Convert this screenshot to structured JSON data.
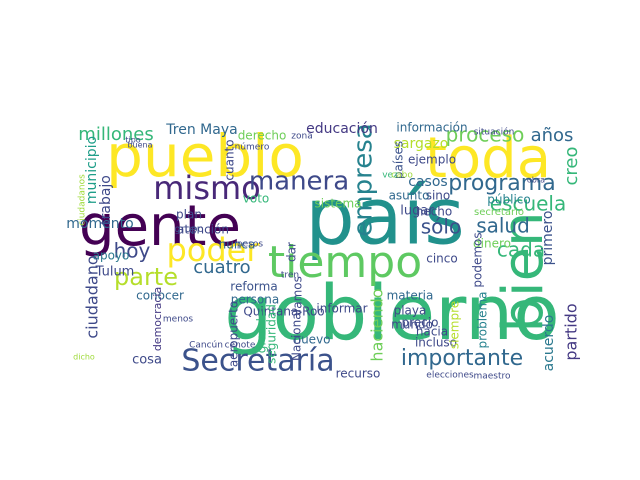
{
  "word_cloud": {
    "words": [
      {
        "text": "gobierno",
        "color": "#35b779"
      },
      {
        "text": "país",
        "color": "#21918c"
      },
      {
        "text": "gente",
        "color": "#440154"
      },
      {
        "text": "toda",
        "color": "#fde725"
      },
      {
        "text": "pueblo",
        "color": "#fde725"
      },
      {
        "text": "bien",
        "color": "#35b779"
      },
      {
        "text": "tiempo",
        "color": "#5ec962"
      },
      {
        "text": "Secretaría",
        "color": "#3b528b"
      },
      {
        "text": "importante",
        "color": "#31688e"
      },
      {
        "text": "poder",
        "color": "#fde725"
      },
      {
        "text": "mismo",
        "color": "#482878"
      },
      {
        "text": "manera",
        "color": "#3e4989"
      },
      {
        "text": "empresa",
        "color": "#26828e"
      },
      {
        "text": "programa",
        "color": "#31688e"
      },
      {
        "text": "parte",
        "color": "#b5de2b"
      },
      {
        "text": "proceso",
        "color": "#6ece58"
      },
      {
        "text": "escuela",
        "color": "#35b779"
      },
      {
        "text": "salud",
        "color": "#31688e"
      },
      {
        "text": "cada",
        "color": "#35b779"
      },
      {
        "text": "hoy",
        "color": "#3e4989"
      },
      {
        "text": "cuatro",
        "color": "#31688e"
      },
      {
        "text": "millones",
        "color": "#35b779"
      },
      {
        "text": "educación",
        "color": "#443983"
      },
      {
        "text": "Tren Maya",
        "color": "#31688e"
      },
      {
        "text": "años",
        "color": "#31688e"
      },
      {
        "text": "creo",
        "color": "#35b779"
      },
      {
        "text": "sólo",
        "color": "#3b528b"
      },
      {
        "text": "partido",
        "color": "#443983"
      },
      {
        "text": "acuerdo",
        "color": "#2a788e"
      },
      {
        "text": "ciudadano",
        "color": "#3e4989"
      },
      {
        "text": "haciendo",
        "color": "#6ece58"
      },
      {
        "text": "momento",
        "color": "#31688e"
      },
      {
        "text": "trabajo",
        "color": "#3e4989"
      },
      {
        "text": "apoyo",
        "color": "#2a788e"
      },
      {
        "text": "Tulum",
        "color": "#3e4989"
      },
      {
        "text": "municipio",
        "color": "#1f9e89"
      },
      {
        "text": "información",
        "color": "#31688e"
      },
      {
        "text": "sargazo",
        "color": "#b5de2b"
      },
      {
        "text": "ejemplo",
        "color": "#3e4989"
      },
      {
        "text": "casos",
        "color": "#31688e"
      },
      {
        "text": "lugar",
        "color": "#3e4989"
      },
      {
        "text": "sino",
        "color": "#3e4989"
      },
      {
        "text": "dinero",
        "color": "#6ece58"
      },
      {
        "text": "primero",
        "color": "#3b528b"
      },
      {
        "text": "podemos",
        "color": "#3e4989"
      },
      {
        "text": "cinco",
        "color": "#3e4989"
      },
      {
        "text": "público",
        "color": "#26828e"
      },
      {
        "text": "secretario",
        "color": "#6ece58"
      },
      {
        "text": "países",
        "color": "#3b528b"
      },
      {
        "text": "hecho",
        "color": "#3e4989"
      },
      {
        "text": "asunto",
        "color": "#31688e"
      },
      {
        "text": "plan",
        "color": "#3e4989"
      },
      {
        "text": "atención",
        "color": "#3e4989"
      },
      {
        "text": "nunca",
        "color": "#31688e"
      },
      {
        "text": "voto",
        "color": "#35b779"
      },
      {
        "text": "cuanto",
        "color": "#3e4989"
      },
      {
        "text": "derecho",
        "color": "#6ece58"
      },
      {
        "text": "grupo",
        "color": "#3e4989"
      },
      {
        "text": "reforma",
        "color": "#3b528b"
      },
      {
        "text": "persona",
        "color": "#31688e"
      },
      {
        "text": "Quintana Roo",
        "color": "#3e4989"
      },
      {
        "text": "conocer",
        "color": "#31688e"
      },
      {
        "text": "informar",
        "color": "#3e4989"
      },
      {
        "text": "materia",
        "color": "#31688e"
      },
      {
        "text": "precio",
        "color": "#3e4989"
      },
      {
        "text": "mundo",
        "color": "#3e4989"
      },
      {
        "text": "playa",
        "color": "#3e4989"
      },
      {
        "text": "hacia",
        "color": "#3e4989"
      },
      {
        "text": "incluso",
        "color": "#3e4989"
      },
      {
        "text": "siempre",
        "color": "#b5de2b"
      },
      {
        "text": "problema",
        "color": "#26828e"
      },
      {
        "text": "nuevo",
        "color": "#31688e"
      },
      {
        "text": "recurso",
        "color": "#3e4989"
      },
      {
        "text": "cosa",
        "color": "#3e4989"
      },
      {
        "text": "democracia",
        "color": "#443983"
      },
      {
        "text": "aeropuerto",
        "color": "#3e4989"
      },
      {
        "text": "grande",
        "color": "#35b779"
      },
      {
        "text": "seguridad",
        "color": "#35b779"
      },
      {
        "text": "Nacional",
        "color": "#3e4989"
      },
      {
        "text": "vamos",
        "color": "#3e4989"
      },
      {
        "text": "dar",
        "color": "#3e4989"
      },
      {
        "text": "sistema",
        "color": "#6ece58"
      },
      {
        "text": "elecciones",
        "color": "#3e4989"
      },
      {
        "text": "maestro",
        "color": "#3e4989"
      },
      {
        "text": "menos",
        "color": "#3e4989"
      },
      {
        "text": "pesos",
        "color": "#3e4989"
      },
      {
        "text": "tren",
        "color": "#3e4989"
      },
      {
        "text": "cenote",
        "color": "#3e4989"
      },
      {
        "text": "Cancún",
        "color": "#3e4989"
      },
      {
        "text": "ciudadanos",
        "color": "#9fda3a"
      },
      {
        "text": "vez",
        "color": "#35b779"
      },
      {
        "text": "cabo",
        "color": "#9fda3a"
      },
      {
        "text": "zona",
        "color": "#3e4989"
      },
      {
        "text": "número",
        "color": "#3e4989"
      },
      {
        "text": "situación",
        "color": "#3e4989"
      },
      {
        "text": "obra",
        "color": "#3e4989"
      },
      {
        "text": "tipo",
        "color": "#3e4989"
      },
      {
        "text": "buena",
        "color": "#3e4989"
      },
      {
        "text": "dicho",
        "color": "#9fda3a"
      }
    ]
  }
}
